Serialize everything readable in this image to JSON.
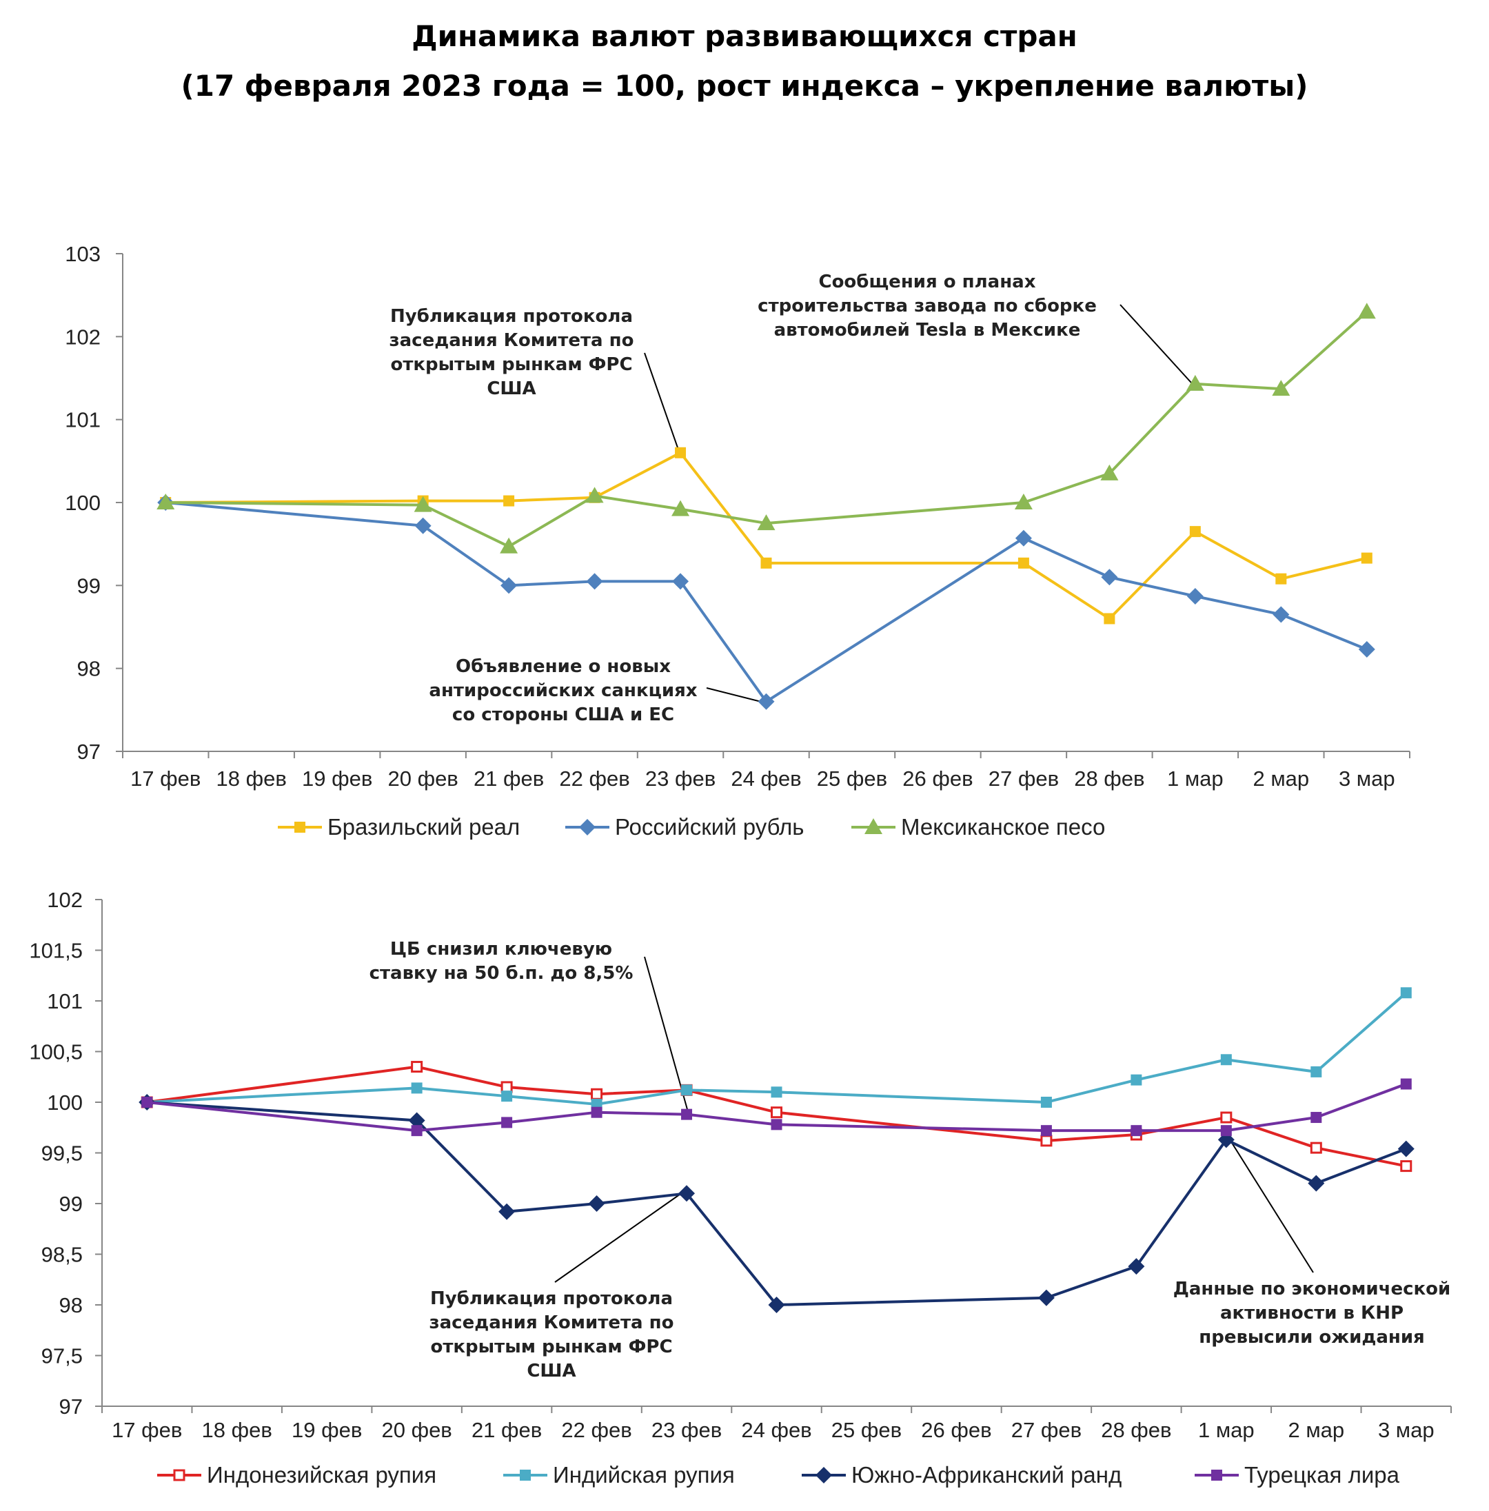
{
  "page": {
    "title_line1": "Динамика валют развивающихся стран",
    "title_line2": "(17 февраля 2023 года = 100, рост индекса – укрепление валюты)"
  },
  "chart_data": [
    {
      "type": "line",
      "categories": [
        "17 фев",
        "18 фев",
        "19 фев",
        "20 фев",
        "21 фев",
        "22 фев",
        "23 фев",
        "24 фев",
        "25 фев",
        "26 фев",
        "27 фев",
        "28 фев",
        "1 мар",
        "2 мар",
        "3 мар"
      ],
      "y_ticks": [
        "97",
        "98",
        "99",
        "100",
        "101",
        "102",
        "103"
      ],
      "ylim": [
        97,
        103
      ],
      "legend_position": "bottom",
      "series": [
        {
          "name": "Бразильский реал",
          "color": "#F5C018",
          "marker": "square",
          "values": [
            100.0,
            null,
            null,
            100.02,
            100.02,
            100.06,
            100.6,
            99.27,
            null,
            null,
            99.27,
            98.6,
            99.65,
            99.08,
            99.33
          ]
        },
        {
          "name": "Российский рубль",
          "color": "#4F81BD",
          "marker": "diamond",
          "values": [
            100.0,
            null,
            null,
            99.72,
            99.0,
            99.05,
            99.05,
            97.6,
            null,
            null,
            99.57,
            99.1,
            98.87,
            98.65,
            98.23
          ]
        },
        {
          "name": "Мексиканское песо",
          "color": "#8CB854",
          "marker": "triangle",
          "values": [
            100.0,
            null,
            null,
            99.97,
            99.47,
            100.08,
            99.92,
            99.75,
            null,
            null,
            100.0,
            100.35,
            101.43,
            101.37,
            102.3
          ]
        }
      ],
      "annotations": [
        {
          "lines": [
            "Публикация протокола",
            "заседания Комитета по",
            "открытым рынкам ФРС",
            "США"
          ],
          "target": {
            "x": "23 фев",
            "y": 100.6
          }
        },
        {
          "lines": [
            "Сообщения о планах",
            "строительства завода по сборке",
            "автомобилей Tesla в Мексике"
          ],
          "target": {
            "x": "1 мар",
            "y": 101.43
          }
        },
        {
          "lines": [
            "Объявление о новых",
            "антироссийских санкциях",
            "со стороны США и ЕС"
          ],
          "target": {
            "x": "24 фев",
            "y": 97.6
          }
        }
      ]
    },
    {
      "type": "line",
      "categories": [
        "17 фев",
        "18 фев",
        "19 фев",
        "20 фев",
        "21 фев",
        "22 фев",
        "23 фев",
        "24 фев",
        "25 фев",
        "26 фев",
        "27 фев",
        "28 фев",
        "1 мар",
        "2 мар",
        "3 мар"
      ],
      "y_ticks": [
        "97",
        "97,5",
        "98",
        "98,5",
        "99",
        "99,5",
        "100",
        "100,5",
        "101",
        "101,5",
        "102"
      ],
      "ylim": [
        97,
        102
      ],
      "legend_position": "bottom",
      "series": [
        {
          "name": "Индонезийская рупия",
          "color": "#E02424",
          "marker": "square-open",
          "values": [
            100.0,
            null,
            null,
            100.35,
            100.15,
            100.08,
            100.12,
            99.9,
            null,
            null,
            99.62,
            99.68,
            99.85,
            99.55,
            99.37
          ]
        },
        {
          "name": "Индийская рупия",
          "color": "#4BACC6",
          "marker": "square",
          "values": [
            100.0,
            null,
            null,
            100.14,
            100.06,
            99.98,
            100.12,
            100.1,
            null,
            null,
            100.0,
            100.22,
            100.42,
            100.3,
            101.08
          ]
        },
        {
          "name": "Южно-Африканский ранд",
          "color": "#17306B",
          "marker": "diamond",
          "values": [
            100.0,
            null,
            null,
            99.82,
            98.92,
            99.0,
            99.1,
            98.0,
            null,
            null,
            98.07,
            98.38,
            99.63,
            99.2,
            99.54
          ]
        },
        {
          "name": "Турецкая лира",
          "color": "#7030A0",
          "marker": "square",
          "values": [
            100.0,
            null,
            null,
            99.72,
            99.8,
            99.9,
            99.88,
            99.78,
            null,
            null,
            99.72,
            99.72,
            99.72,
            99.85,
            100.18
          ]
        }
      ],
      "annotations": [
        {
          "lines": [
            "ЦБ снизил ключевую",
            "ставку на 50 б.п. до 8,5%"
          ],
          "target": {
            "x": "23 фев",
            "y": 99.9
          }
        },
        {
          "lines": [
            "Публикация протокола",
            "заседания Комитета по",
            "открытым рынкам ФРС",
            "США"
          ],
          "target": {
            "x": "23 фев",
            "y": 99.1
          }
        },
        {
          "lines": [
            "Данные по экономической",
            "активности в КНР",
            "превысили ожидания"
          ],
          "target": {
            "x": "1 мар",
            "y": 99.63
          }
        }
      ]
    }
  ]
}
